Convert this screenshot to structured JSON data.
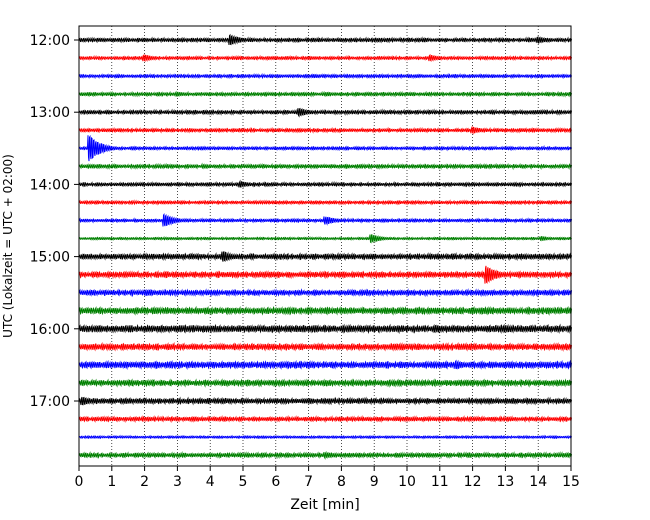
{
  "chart_data": {
    "type": "line",
    "title": "",
    "xlabel": "Zeit  [min]",
    "ylabel": "UTC (Lokalzeit = UTC + 02:00)",
    "xlim": [
      0,
      15
    ],
    "x_ticks": [
      "0",
      "1",
      "2",
      "3",
      "4",
      "5",
      "6",
      "7",
      "8",
      "9",
      "10",
      "11",
      "12",
      "13",
      "14",
      "15"
    ],
    "y_ticks": [
      "12:00",
      "13:00",
      "14:00",
      "15:00",
      "16:00",
      "17:00"
    ],
    "grid": "vertical dotted",
    "trace_colors": [
      "#000000",
      "#ff0000",
      "#0000ff",
      "#008000"
    ],
    "traces": [
      {
        "start": "12:00",
        "color": "#000000",
        "noise": 1.4,
        "events": [
          {
            "t": 4.6,
            "a": 5
          },
          {
            "t": 14.0,
            "a": 3
          }
        ]
      },
      {
        "start": "12:15",
        "color": "#ff0000",
        "noise": 1.2,
        "events": [
          {
            "t": 2.0,
            "a": 3
          },
          {
            "t": 10.7,
            "a": 3
          }
        ]
      },
      {
        "start": "12:30",
        "color": "#0000ff",
        "noise": 1.2,
        "events": []
      },
      {
        "start": "12:45",
        "color": "#008000",
        "noise": 1.3,
        "events": [
          {
            "t": 3.0,
            "a": 2
          }
        ]
      },
      {
        "start": "13:00",
        "color": "#000000",
        "noise": 1.4,
        "events": [
          {
            "t": 6.7,
            "a": 4
          }
        ]
      },
      {
        "start": "13:15",
        "color": "#ff0000",
        "noise": 1.3,
        "events": [
          {
            "t": 12.0,
            "a": 3
          }
        ]
      },
      {
        "start": "13:30",
        "color": "#0000ff",
        "noise": 1.2,
        "events": [
          {
            "t": 0.3,
            "a": 13
          }
        ]
      },
      {
        "start": "13:45",
        "color": "#008000",
        "noise": 1.4,
        "events": [
          {
            "t": 3.8,
            "a": 2
          }
        ]
      },
      {
        "start": "14:00",
        "color": "#000000",
        "noise": 1.3,
        "events": [
          {
            "t": 4.9,
            "a": 3
          }
        ]
      },
      {
        "start": "14:15",
        "color": "#ff0000",
        "noise": 1.2,
        "events": []
      },
      {
        "start": "14:30",
        "color": "#0000ff",
        "noise": 1.2,
        "events": [
          {
            "t": 2.6,
            "a": 6
          },
          {
            "t": 7.5,
            "a": 4
          }
        ]
      },
      {
        "start": "14:45",
        "color": "#008000",
        "noise": 0.9,
        "events": [
          {
            "t": 8.9,
            "a": 4
          },
          {
            "t": 14.1,
            "a": 2
          }
        ]
      },
      {
        "start": "15:00",
        "color": "#000000",
        "noise": 2.0,
        "events": [
          {
            "t": 4.4,
            "a": 5
          }
        ]
      },
      {
        "start": "15:15",
        "color": "#ff0000",
        "noise": 2.1,
        "events": [
          {
            "t": 12.4,
            "a": 9
          }
        ]
      },
      {
        "start": "15:30",
        "color": "#0000ff",
        "noise": 2.0,
        "events": []
      },
      {
        "start": "15:45",
        "color": "#008000",
        "noise": 2.4,
        "events": []
      },
      {
        "start": "16:00",
        "color": "#000000",
        "noise": 2.6,
        "events": []
      },
      {
        "start": "16:15",
        "color": "#ff0000",
        "noise": 2.3,
        "events": []
      },
      {
        "start": "16:30",
        "color": "#0000ff",
        "noise": 2.4,
        "events": [
          {
            "t": 11.5,
            "a": 4
          }
        ]
      },
      {
        "start": "16:45",
        "color": "#008000",
        "noise": 2.2,
        "events": []
      },
      {
        "start": "17:00",
        "color": "#000000",
        "noise": 2.0,
        "events": [
          {
            "t": 0.1,
            "a": 4
          }
        ]
      },
      {
        "start": "17:15",
        "color": "#ff0000",
        "noise": 1.6,
        "events": [
          {
            "t": 10.0,
            "a": 2
          }
        ]
      },
      {
        "start": "17:30",
        "color": "#0000ff",
        "noise": 0.9,
        "events": []
      },
      {
        "start": "17:45",
        "color": "#008000",
        "noise": 1.6,
        "events": [
          {
            "t": 7.5,
            "a": 3
          }
        ]
      }
    ]
  }
}
